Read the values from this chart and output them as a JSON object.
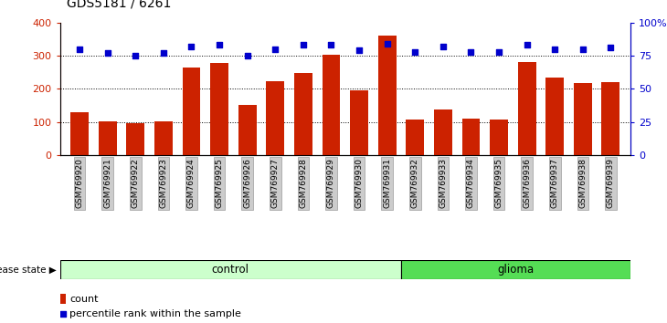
{
  "title": "GDS5181 / 6261",
  "samples": [
    "GSM769920",
    "GSM769921",
    "GSM769922",
    "GSM769923",
    "GSM769924",
    "GSM769925",
    "GSM769926",
    "GSM769927",
    "GSM769928",
    "GSM769929",
    "GSM769930",
    "GSM769931",
    "GSM769932",
    "GSM769933",
    "GSM769934",
    "GSM769935",
    "GSM769936",
    "GSM769937",
    "GSM769938",
    "GSM769939"
  ],
  "counts": [
    130,
    102,
    97,
    101,
    265,
    278,
    150,
    222,
    247,
    303,
    195,
    360,
    107,
    137,
    110,
    107,
    280,
    233,
    218,
    219
  ],
  "percentiles": [
    80,
    77,
    75,
    77,
    82,
    83,
    75,
    80,
    83,
    83,
    79,
    84,
    78,
    82,
    78,
    78,
    83,
    80,
    80,
    81
  ],
  "bar_color": "#cc2200",
  "dot_color": "#0000cc",
  "left_axis_color": "#cc2200",
  "right_axis_color": "#0000cc",
  "ylim_left": [
    0,
    400
  ],
  "ylim_right": [
    0,
    100
  ],
  "yticks_left": [
    0,
    100,
    200,
    300,
    400
  ],
  "ytick_labels_right": [
    "0",
    "25",
    "50",
    "75",
    "100%"
  ],
  "grid_values": [
    100,
    200,
    300
  ],
  "control_color": "#ccffcc",
  "glioma_color": "#55dd55",
  "control_label": "control",
  "glioma_label": "glioma",
  "disease_state_label": "disease state",
  "legend_count_label": "count",
  "legend_percentile_label": "percentile rank within the sample",
  "bar_width": 0.65,
  "tick_label_bg": "#cccccc",
  "n_control": 12,
  "n_glioma": 8
}
